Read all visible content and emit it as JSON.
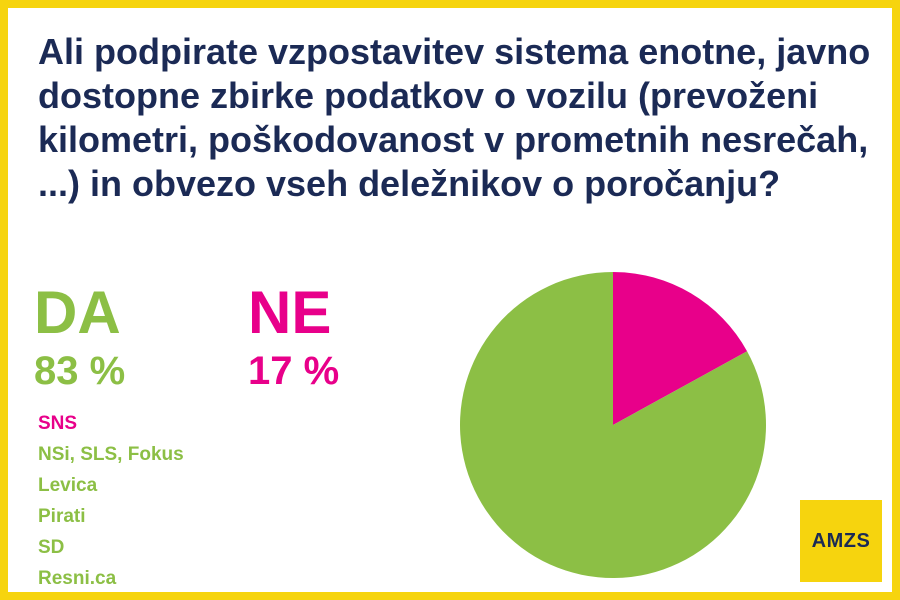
{
  "question": "Ali podpirate vzpostavitev sistema enotne, javno dostopne zbirke podatkov o vozilu (prevoženi kilometri, poškodovanost v prometnih nesrečah, ...) in obvezo vseh deležnikov o poročanju?",
  "answers": [
    {
      "label": "DA",
      "percent_text": "83 %",
      "color": "#8cbf45"
    },
    {
      "label": "NE",
      "percent_text": "17 %",
      "color": "#e8008a"
    }
  ],
  "parties": [
    {
      "name": "SNS",
      "answer": "NE"
    },
    {
      "name": "NSi, SLS, Fokus",
      "answer": "DA"
    },
    {
      "name": "Levica",
      "answer": "DA"
    },
    {
      "name": "Pirati",
      "answer": "DA"
    },
    {
      "name": "SD",
      "answer": "DA"
    },
    {
      "name": "Resni.ca",
      "answer": "DA"
    }
  ],
  "logo_text": "AMZS",
  "colors": {
    "frame": "#f6d40e",
    "title": "#1b2a55",
    "yes": "#8cbf45",
    "no": "#e8008a"
  },
  "chart_data": {
    "type": "pie",
    "title": "",
    "slices": [
      {
        "name": "NE",
        "value": 17,
        "color": "#e8008a"
      },
      {
        "name": "DA",
        "value": 83,
        "color": "#8cbf45"
      }
    ],
    "start_angle": "12 o'clock",
    "direction": "clockwise",
    "legend": "none"
  }
}
